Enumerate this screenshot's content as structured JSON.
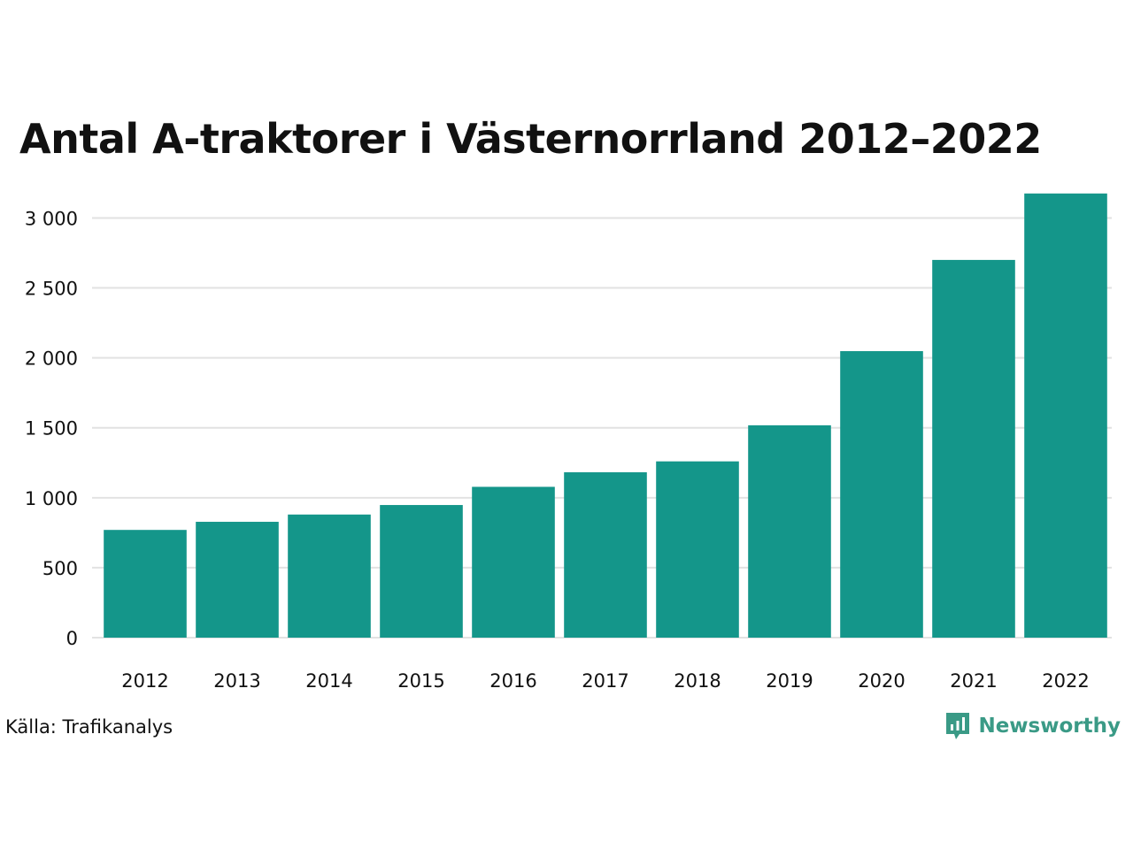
{
  "chart_data": {
    "type": "bar",
    "title": "Antal A-traktorer i Västernorrland 2012–2022",
    "categories": [
      "2012",
      "2013",
      "2014",
      "2015",
      "2016",
      "2017",
      "2018",
      "2019",
      "2020",
      "2021",
      "2022"
    ],
    "values": [
      770,
      828,
      880,
      948,
      1078,
      1182,
      1260,
      1518,
      2048,
      2700,
      3175
    ],
    "ylim": [
      0,
      3300
    ],
    "yticks": [
      0,
      500,
      1000,
      1500,
      2000,
      2500,
      3000
    ],
    "ytick_labels": [
      "0",
      "500",
      "1 000",
      "1 500",
      "2 000",
      "2 500",
      "3 000"
    ],
    "xlabel": "",
    "ylabel": "",
    "grid": true,
    "bar_color": "#14968a"
  },
  "footer": {
    "source": "Källa: Trafikanalys",
    "brand": "Newsworthy",
    "brand_icon": "newsworthy-logo-icon",
    "brand_color": "#3a9a86"
  }
}
